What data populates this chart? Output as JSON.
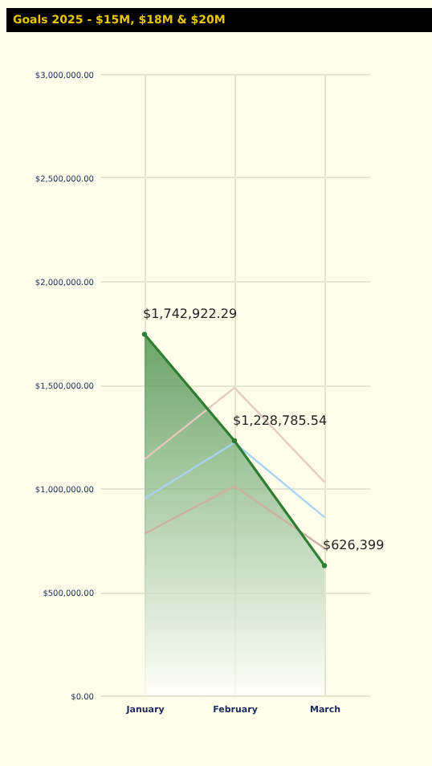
{
  "chart_data": {
    "type": "line",
    "title": "Goals 2025 - $15M, $18M & $20M",
    "categories": [
      "January",
      "February",
      "March"
    ],
    "series": [
      {
        "color": "#e6c9bf",
        "values": [
          1140000,
          1485000,
          1030000
        ]
      },
      {
        "color": "#a9d3f2",
        "values": [
          950000,
          1220000,
          860000
        ]
      },
      {
        "color": "#ccb1a3",
        "values": [
          780000,
          1010000,
          710000
        ]
      },
      {
        "type": "area",
        "color": "#2e7d32",
        "marker": "circle",
        "values": [
          1742922.29,
          1228785.54,
          626399
        ],
        "value_labels": [
          "$1,742,922.29",
          "$1,228,785.54",
          "$626,399"
        ]
      }
    ],
    "ylim": [
      0,
      3000000
    ],
    "yticks": [
      {
        "value": 0,
        "label": "$0.00"
      },
      {
        "value": 500000,
        "label": "$500,000.00"
      },
      {
        "value": 1000000,
        "label": "$1,000,000.00"
      },
      {
        "value": 1500000,
        "label": "$1,500,000.00"
      },
      {
        "value": 2000000,
        "label": "$2,000,000.00"
      },
      {
        "value": 2500000,
        "label": "$2,500,000.00"
      },
      {
        "value": 3000000,
        "label": "$3,000,000.00"
      }
    ],
    "grid": true
  }
}
